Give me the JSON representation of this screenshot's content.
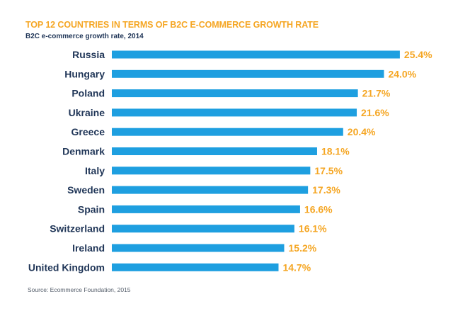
{
  "header": {
    "title": "TOP 12 COUNTRIES IN TERMS OF B2C E-COMMERCE GROWTH RATE",
    "subtitle": "B2C e-commerce growth rate, 2014"
  },
  "footer": {
    "source": "Source: Ecommerce Foundation, 2015"
  },
  "colors": {
    "bar": "#1e9fe0",
    "value_label": "#f5a623",
    "category_label": "#1f3557"
  },
  "chart_data": {
    "type": "bar",
    "orientation": "horizontal",
    "title": "TOP 12 COUNTRIES IN TERMS OF B2C E-COMMERCE GROWTH RATE",
    "subtitle": "B2C e-commerce growth rate, 2014",
    "categories": [
      "Russia",
      "Hungary",
      "Poland",
      "Ukraine",
      "Greece",
      "Denmark",
      "Italy",
      "Sweden",
      "Spain",
      "Switzerland",
      "Ireland",
      "United Kingdom"
    ],
    "values": [
      25.4,
      24.0,
      21.7,
      21.6,
      20.4,
      18.1,
      17.5,
      17.3,
      16.6,
      16.1,
      15.2,
      14.7
    ],
    "value_labels": [
      "25.4%",
      "24.0%",
      "21.7%",
      "21.6%",
      "20.4%",
      "18.1%",
      "17.5%",
      "17.3%",
      "16.6%",
      "16.1%",
      "15.2%",
      "14.7%"
    ],
    "xlabel": "",
    "ylabel": "",
    "xlim": [
      0,
      25.4
    ],
    "grid": false,
    "legend": "none"
  }
}
